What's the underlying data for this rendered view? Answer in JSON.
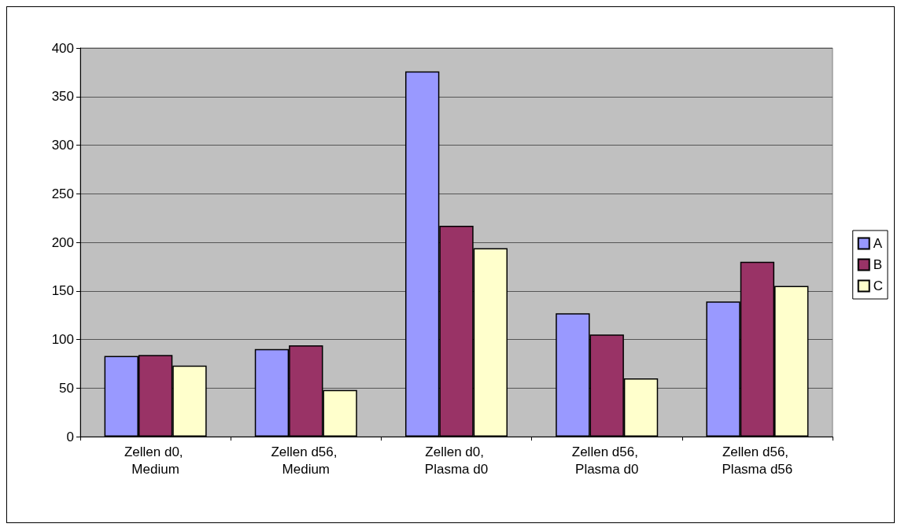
{
  "chart_data": {
    "type": "bar",
    "categories": [
      "Zellen d0, Medium",
      "Zellen d56, Medium",
      "Zellen d0, Plasma d0",
      "Zellen d56, Plasma d0",
      "Zellen d56, Plasma d56"
    ],
    "series": [
      {
        "name": "A",
        "color": "#9999ff",
        "values": [
          83,
          90,
          376,
          127,
          139
        ]
      },
      {
        "name": "B",
        "color": "#993366",
        "values": [
          84,
          94,
          217,
          105,
          180
        ]
      },
      {
        "name": "C",
        "color": "#ffffcc",
        "values": [
          73,
          48,
          194,
          60,
          155
        ]
      }
    ],
    "ylim": [
      0,
      400
    ],
    "yticks": [
      0,
      50,
      100,
      150,
      200,
      250,
      300,
      350,
      400
    ],
    "grid": "y",
    "legend": "right"
  }
}
